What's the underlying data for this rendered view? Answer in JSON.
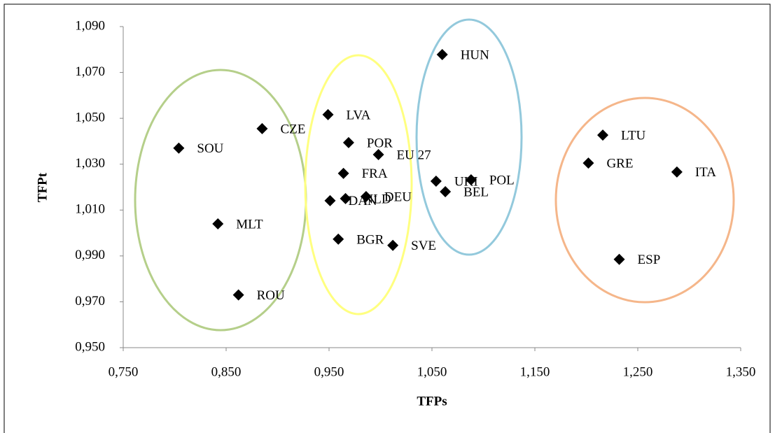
{
  "chart_data": {
    "type": "scatter",
    "x_label": "TFPs",
    "y_label": "TFPt",
    "xlim": [
      0.75,
      1.35
    ],
    "xticks": [
      {
        "value": 0.75,
        "label": "0,750"
      },
      {
        "value": 0.85,
        "label": "0,850"
      },
      {
        "value": 0.95,
        "label": "0,950"
      },
      {
        "value": 1.05,
        "label": "1,050"
      },
      {
        "value": 1.15,
        "label": "1,150"
      },
      {
        "value": 1.25,
        "label": "1,250"
      },
      {
        "value": 1.35,
        "label": "1,350"
      }
    ],
    "ylim": [
      0.95,
      1.09
    ],
    "yticks": [
      {
        "value": 0.95,
        "label": "0,950"
      },
      {
        "value": 0.97,
        "label": "0,970"
      },
      {
        "value": 0.99,
        "label": "0,990"
      },
      {
        "value": 1.01,
        "label": "1,010"
      },
      {
        "value": 1.03,
        "label": "1,030"
      },
      {
        "value": 1.05,
        "label": "1,050"
      },
      {
        "value": 1.07,
        "label": "1,070"
      },
      {
        "value": 1.09,
        "label": "1,090"
      }
    ],
    "color": "#000000",
    "labels": [
      "SOU",
      "CZE",
      "MLT",
      "ROU",
      "LVA",
      "POR",
      "EU 27",
      "FRA",
      "DAN",
      "NLD",
      "DEU",
      "BGR",
      "SVE",
      "HUN",
      "UKI",
      "POL",
      "BEL",
      "LTU",
      "GRE",
      "ITA",
      "ESP"
    ],
    "x": [
      0.804,
      0.885,
      0.842,
      0.862,
      0.949,
      0.969,
      0.998,
      0.964,
      0.951,
      0.966,
      0.986,
      0.959,
      1.012,
      1.06,
      1.054,
      1.088,
      1.063,
      1.216,
      1.202,
      1.288,
      1.232
    ],
    "values": [
      1.037,
      1.0455,
      1.004,
      0.973,
      1.0516,
      1.0394,
      1.0342,
      1.026,
      1.0141,
      1.015,
      1.0159,
      0.9973,
      0.9946,
      1.0778,
      1.0226,
      1.0232,
      1.018,
      1.0427,
      1.0305,
      1.0266,
      0.9885
    ]
  }
}
